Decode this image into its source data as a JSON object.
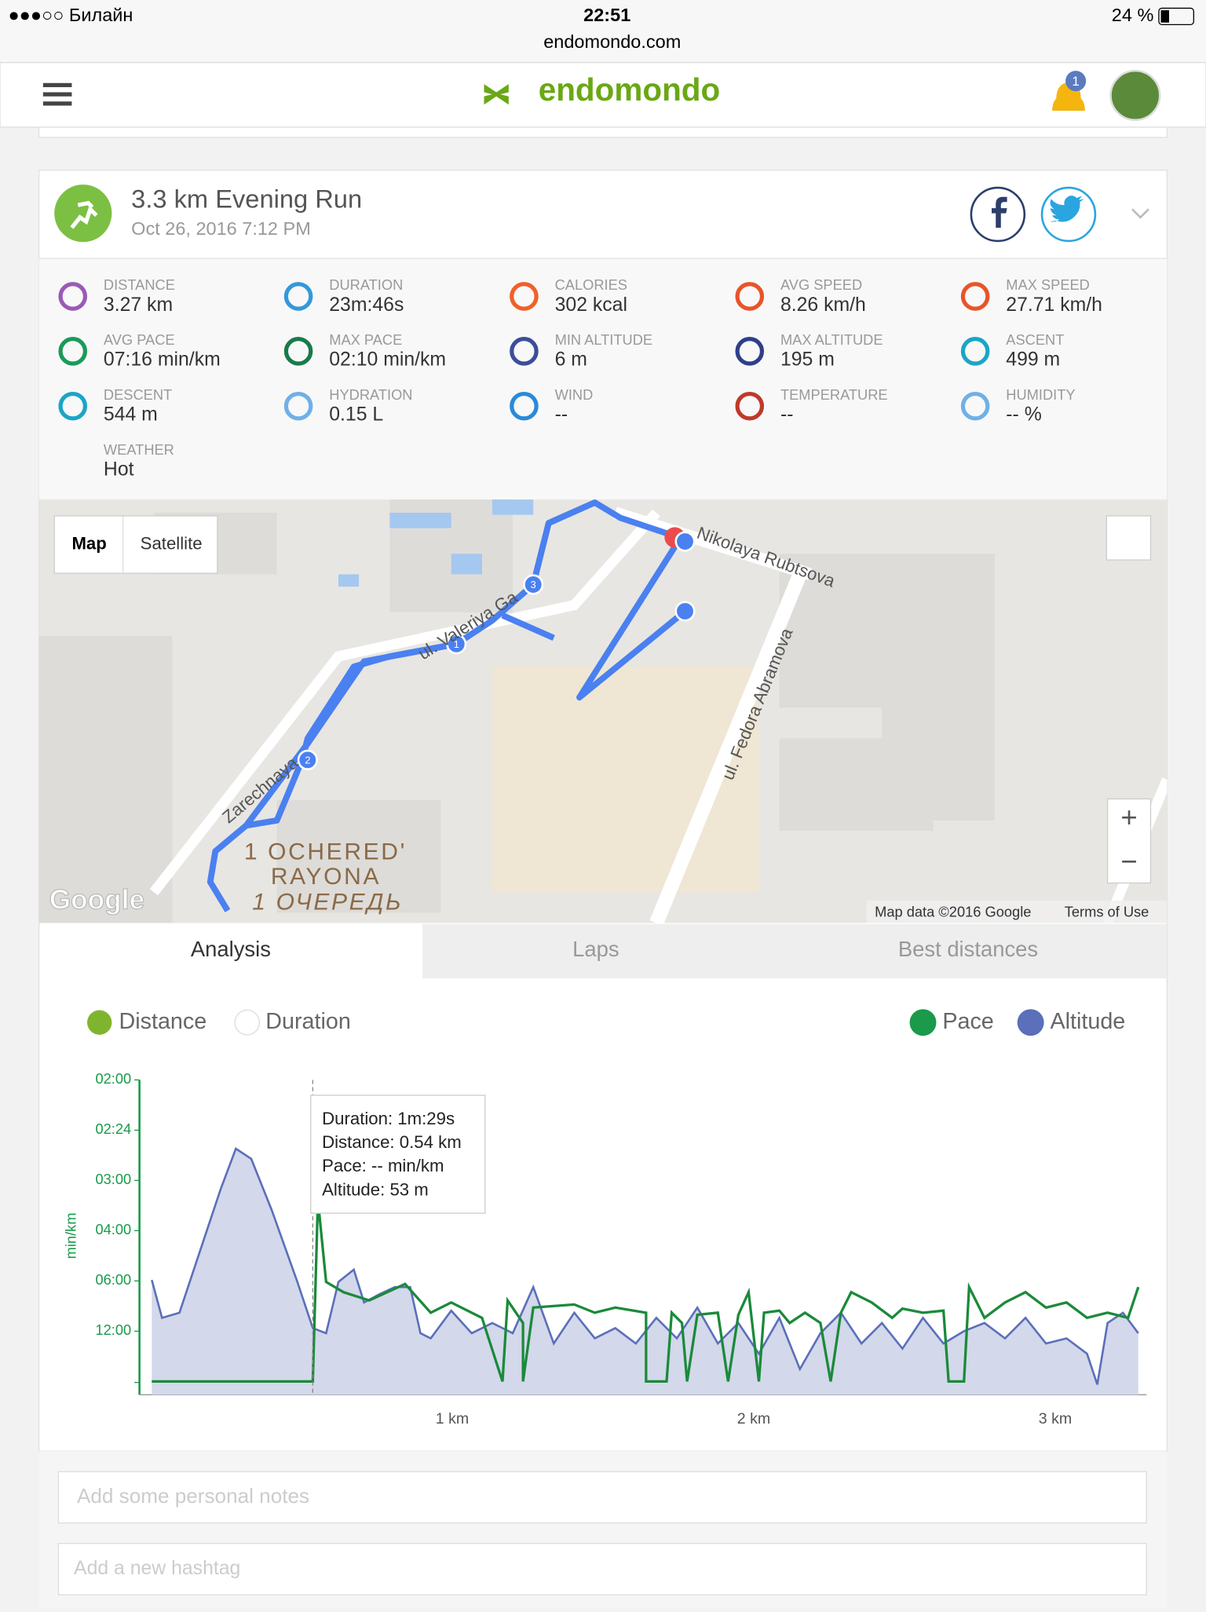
{
  "status_bar": {
    "carrier": "●●●○○ Билайн",
    "time": "22:51",
    "url": "endomondo.com",
    "battery": "24 %"
  },
  "header": {
    "logo": "endomondo",
    "notification_count": "1"
  },
  "activity": {
    "title": "3.3 km Evening Run",
    "date": "Oct 26, 2016 7:12 PM"
  },
  "stats": [
    {
      "label": "DISTANCE",
      "value": "3.27 km"
    },
    {
      "label": "DURATION",
      "value": "23m:46s"
    },
    {
      "label": "CALORIES",
      "value": "302 kcal"
    },
    {
      "label": "AVG SPEED",
      "value": "8.26 km/h"
    },
    {
      "label": "MAX SPEED",
      "value": "27.71 km/h"
    },
    {
      "label": "AVG PACE",
      "value": "07:16 min/km"
    },
    {
      "label": "MAX PACE",
      "value": "02:10 min/km"
    },
    {
      "label": "MIN ALTITUDE",
      "value": "6 m"
    },
    {
      "label": "MAX ALTITUDE",
      "value": "195 m"
    },
    {
      "label": "ASCENT",
      "value": "499 m"
    },
    {
      "label": "DESCENT",
      "value": "544 m"
    },
    {
      "label": "HYDRATION",
      "value": "0.15 L"
    },
    {
      "label": "WIND",
      "value": "--"
    },
    {
      "label": "TEMPERATURE",
      "value": "--"
    },
    {
      "label": "HUMIDITY",
      "value": "-- %"
    },
    {
      "label": "WEATHER",
      "value": "Hot"
    }
  ],
  "map": {
    "buttons": [
      "Map",
      "Satellite"
    ],
    "streets": [
      "Nikolaya Rubtsova",
      "ul. Valeriya Ga",
      "ul. Fedora Abramova",
      "Zarechnaya"
    ],
    "districts": [
      "1 OCHERED'",
      "RAYONA",
      "1 ОЧЕРЕДЬ"
    ],
    "logo": "Google",
    "attribution": "Map data ©2016 Google",
    "terms": "Terms of Use",
    "zoom": [
      "+",
      "−"
    ],
    "markers": [
      "1",
      "2",
      "3"
    ]
  },
  "tabs": [
    "Analysis",
    "Laps",
    "Best distances"
  ],
  "legend": {
    "x_options": [
      "Distance",
      "Duration"
    ],
    "series": [
      "Pace",
      "Altitude"
    ]
  },
  "chart": {
    "y_label": "min/km",
    "yticks": [
      "02:00",
      "02:24",
      "03:00",
      "04:00",
      "06:00",
      "12:00"
    ],
    "xticks": [
      "1 km",
      "2 km",
      "3 km"
    ],
    "tooltip": [
      "Duration: 1m:29s",
      "Distance: 0.54 km",
      "Pace: -- min/km",
      "Altitude: 53 m"
    ]
  },
  "inputs": [
    "Add some personal notes",
    "Add a new hashtag"
  ]
}
